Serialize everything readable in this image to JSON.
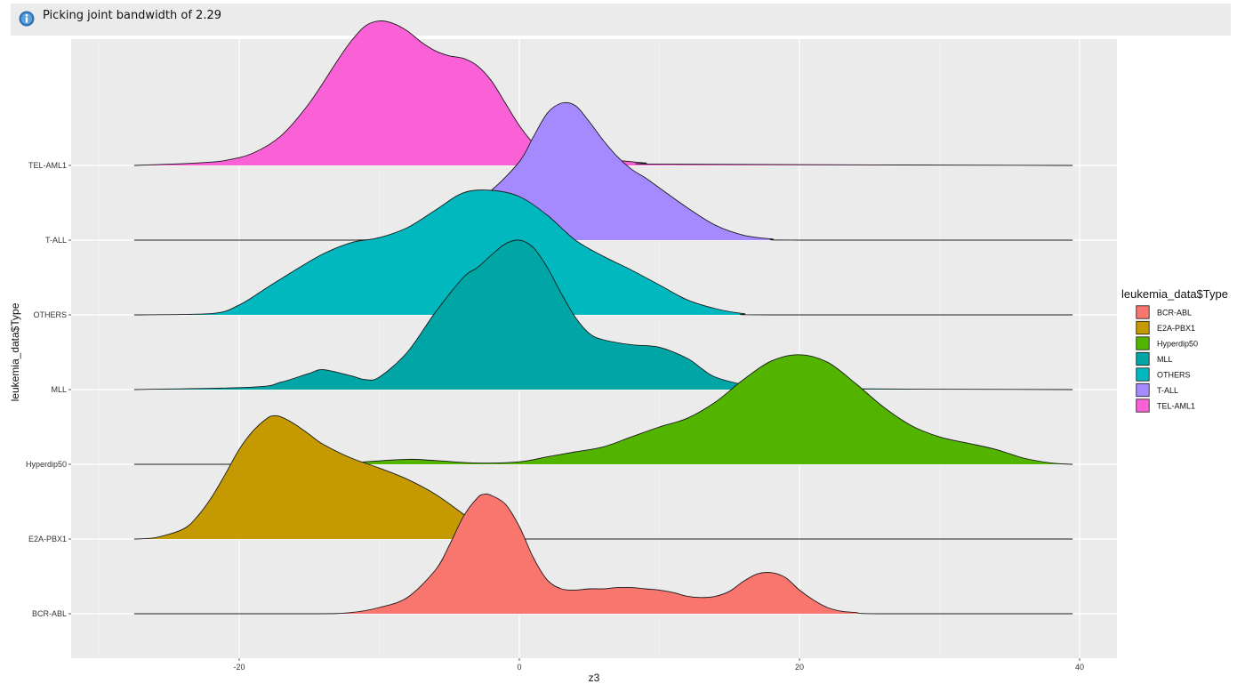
{
  "message": {
    "text": "Picking joint bandwidth of 2.29",
    "icon": "info-icon"
  },
  "chart_data": {
    "type": "ridgeline",
    "title": "",
    "xlabel": "z3",
    "ylabel": "leukemia_data$Type",
    "xlim": [
      -31,
      42
    ],
    "x_ticks": [
      -20,
      0,
      20,
      40
    ],
    "x_tick_labels": [
      "-20",
      "0",
      "20",
      "40"
    ],
    "panel_background": "#ebebeb",
    "grid": true,
    "legend": {
      "title": "leukemia_data$Type",
      "position": "right"
    },
    "categories": [
      "BCR-ABL",
      "E2A-PBX1",
      "Hyperdip50",
      "MLL",
      "OTHERS",
      "T-ALL",
      "TEL-AML1"
    ],
    "series": [
      {
        "name": "BCR-ABL",
        "color": "#F8766D",
        "x": [
          -27.5,
          -15,
          -12,
          -10,
          -8,
          -6,
          -5,
          -4,
          -3,
          -2.5,
          -2,
          -1,
          0,
          1,
          2,
          3,
          4,
          5,
          6,
          7,
          8,
          9,
          10,
          11,
          12,
          13,
          14,
          15,
          16,
          17,
          18,
          19,
          20,
          21,
          22,
          23,
          24,
          26,
          39.5
        ],
        "y": [
          0,
          0,
          0.01,
          0.05,
          0.13,
          0.35,
          0.55,
          0.78,
          0.93,
          0.96,
          0.95,
          0.88,
          0.7,
          0.45,
          0.27,
          0.2,
          0.19,
          0.2,
          0.2,
          0.21,
          0.21,
          0.2,
          0.19,
          0.17,
          0.14,
          0.13,
          0.14,
          0.18,
          0.26,
          0.32,
          0.33,
          0.29,
          0.19,
          0.11,
          0.05,
          0.02,
          0.01,
          0,
          0
        ]
      },
      {
        "name": "E2A-PBX1",
        "color": "#C49A00",
        "x": [
          -27.5,
          -26,
          -24,
          -23,
          -22,
          -21,
          -20,
          -19,
          -18,
          -17.5,
          -17,
          -16,
          -15,
          -14,
          -12,
          -10,
          -8,
          -6,
          -4,
          -3,
          -2,
          -1,
          39.5
        ],
        "y": [
          0,
          0.01,
          0.08,
          0.18,
          0.33,
          0.52,
          0.72,
          0.87,
          0.97,
          0.99,
          0.98,
          0.92,
          0.84,
          0.76,
          0.65,
          0.57,
          0.48,
          0.36,
          0.2,
          0.11,
          0.05,
          0,
          0
        ]
      },
      {
        "name": "Hyperdip50",
        "color": "#53B400",
        "x": [
          -27.5,
          -13,
          -11,
          -8,
          -6,
          -3,
          0,
          2,
          4,
          6,
          8,
          10,
          12,
          14,
          16,
          18,
          20,
          22,
          24,
          26,
          28,
          30,
          32,
          34,
          36,
          38,
          39.5
        ],
        "y": [
          0,
          0,
          0.02,
          0.04,
          0.03,
          0.01,
          0.02,
          0.06,
          0.1,
          0.14,
          0.22,
          0.3,
          0.37,
          0.5,
          0.68,
          0.83,
          0.88,
          0.82,
          0.65,
          0.46,
          0.31,
          0.22,
          0.17,
          0.12,
          0.05,
          0.01,
          0
        ]
      },
      {
        "name": "MLL",
        "color": "#00A6A6",
        "x": [
          -27.5,
          -19,
          -17,
          -15,
          -14,
          -12,
          -11,
          -10,
          -8,
          -6,
          -4,
          -3,
          -2,
          -1,
          0,
          1,
          2,
          3,
          4,
          5,
          6,
          8,
          10,
          12,
          13,
          14,
          16,
          18,
          39.5
        ],
        "y": [
          0,
          0.02,
          0.06,
          0.13,
          0.16,
          0.11,
          0.08,
          0.1,
          0.3,
          0.62,
          0.9,
          0.98,
          1.08,
          1.17,
          1.2,
          1.14,
          0.98,
          0.77,
          0.58,
          0.45,
          0.4,
          0.36,
          0.34,
          0.25,
          0.17,
          0.1,
          0.04,
          0.01,
          0
        ]
      },
      {
        "name": "OTHERS",
        "color": "#00B8BE",
        "x": [
          -27.5,
          -22,
          -20,
          -18,
          -16,
          -14,
          -12,
          -10,
          -8,
          -6,
          -4,
          -2,
          0,
          2,
          4,
          6,
          8,
          10,
          12,
          14,
          16,
          18,
          39.5
        ],
        "y": [
          0,
          0.01,
          0.08,
          0.22,
          0.36,
          0.49,
          0.58,
          0.62,
          0.7,
          0.84,
          0.98,
          1.0,
          0.95,
          0.8,
          0.6,
          0.47,
          0.36,
          0.24,
          0.12,
          0.05,
          0.01,
          0,
          0
        ]
      },
      {
        "name": "T-ALL",
        "color": "#A58AFF",
        "x": [
          -27.5,
          -12,
          -10,
          -8,
          -6,
          -4,
          -2,
          0,
          1,
          2,
          3,
          4,
          5,
          6,
          7,
          8,
          9,
          10,
          12,
          14,
          16,
          18,
          20,
          39.5
        ],
        "y": [
          0,
          0,
          0.02,
          0.06,
          0.14,
          0.25,
          0.4,
          0.63,
          0.83,
          1.02,
          1.1,
          1.08,
          0.95,
          0.8,
          0.67,
          0.57,
          0.5,
          0.42,
          0.26,
          0.12,
          0.04,
          0.01,
          0,
          0
        ]
      },
      {
        "name": "TEL-AML1",
        "color": "#FB61D7",
        "x": [
          -27.5,
          -25,
          -23,
          -21,
          -19,
          -17,
          -15,
          -13,
          -12,
          -11,
          -10,
          -9,
          -8,
          -7,
          -6,
          -5,
          -4,
          -3,
          -2,
          -1,
          0,
          1,
          2,
          3,
          4,
          5,
          7,
          9,
          11,
          39.5
        ],
        "y": [
          0,
          0.01,
          0.02,
          0.04,
          0.1,
          0.24,
          0.5,
          0.84,
          1.0,
          1.12,
          1.16,
          1.14,
          1.08,
          0.99,
          0.92,
          0.88,
          0.86,
          0.8,
          0.68,
          0.5,
          0.32,
          0.18,
          0.1,
          0.06,
          0.05,
          0.05,
          0.04,
          0.02,
          0.01,
          0
        ]
      }
    ]
  }
}
